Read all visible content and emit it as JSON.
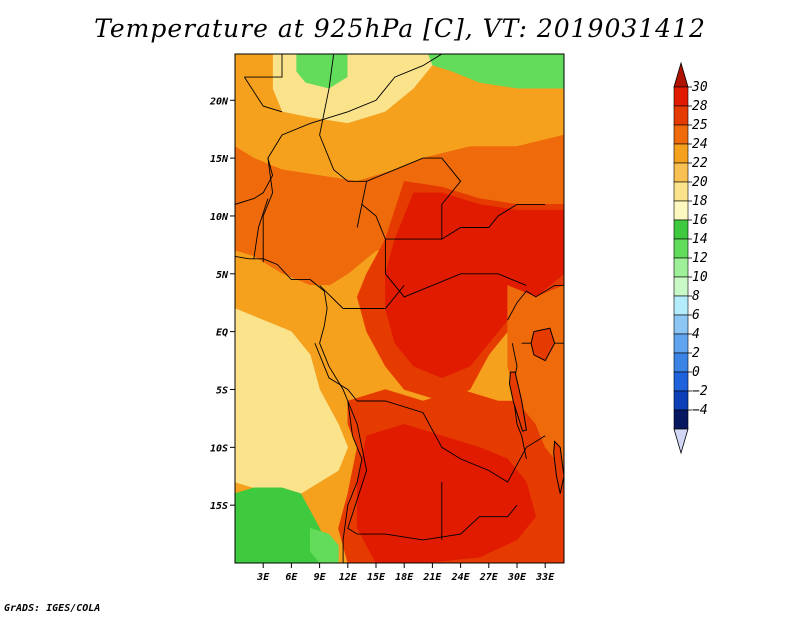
{
  "chart_data": {
    "type": "heatmap",
    "title": "Temperature at 925hPa [C], VT: 2019031412",
    "xlabel": "",
    "ylabel": "",
    "x_range": [
      0,
      35
    ],
    "y_range": [
      -20,
      24
    ],
    "x_ticks": [
      {
        "value": 3,
        "label": "3E"
      },
      {
        "value": 6,
        "label": "6E"
      },
      {
        "value": 9,
        "label": "9E"
      },
      {
        "value": 12,
        "label": "12E"
      },
      {
        "value": 15,
        "label": "15E"
      },
      {
        "value": 18,
        "label": "18E"
      },
      {
        "value": 21,
        "label": "21E"
      },
      {
        "value": 24,
        "label": "24E"
      },
      {
        "value": 27,
        "label": "27E"
      },
      {
        "value": 30,
        "label": "30E"
      },
      {
        "value": 33,
        "label": "33E"
      }
    ],
    "y_ticks": [
      {
        "value": 20,
        "label": "20N"
      },
      {
        "value": 15,
        "label": "15N"
      },
      {
        "value": 10,
        "label": "10N"
      },
      {
        "value": 5,
        "label": "5N"
      },
      {
        "value": 0,
        "label": "EQ"
      },
      {
        "value": -5,
        "label": "5S"
      },
      {
        "value": -10,
        "label": "10S"
      },
      {
        "value": -15,
        "label": "15S"
      }
    ],
    "colorbar": {
      "levels": [
        {
          "label": "30",
          "color": "#e11b00"
        },
        {
          "label": "28",
          "color": "#e63b00"
        },
        {
          "label": "25",
          "color": "#ee6a0a"
        },
        {
          "label": "24",
          "color": "#f5a11e"
        },
        {
          "label": "22",
          "color": "#f7c050"
        },
        {
          "label": "20",
          "color": "#fbe38c"
        },
        {
          "label": "18",
          "color": "#fdf8c0"
        },
        {
          "label": "16",
          "color": "#3ec93e"
        },
        {
          "label": "14",
          "color": "#62dc5a"
        },
        {
          "label": "12",
          "color": "#9df098"
        },
        {
          "label": "10",
          "color": "#c9f9c6"
        },
        {
          "label": "8",
          "color": "#b3ecfb"
        },
        {
          "label": "6",
          "color": "#8cc6f4"
        },
        {
          "label": "4",
          "color": "#60a3ee"
        },
        {
          "label": "2",
          "color": "#3b84e6"
        },
        {
          "label": "0",
          "color": "#1e62dc"
        },
        {
          "label": "−2",
          "color": "#0c3fb8"
        },
        {
          "label": "−4",
          "color": "#08208a"
        }
      ],
      "top_overflow_color": "#b01200",
      "bottom_overflow_color": "#d2d7f5",
      "bottom_band_color": "#081860"
    },
    "regions": [
      {
        "name": "north-green-band",
        "temp_class": "14-16",
        "color": "#62dc5a",
        "poly": [
          [
            6.5,
            24
          ],
          [
            12,
            24
          ],
          [
            12,
            22
          ],
          [
            10,
            21
          ],
          [
            7.5,
            21.5
          ],
          [
            6.5,
            22.5
          ]
        ]
      },
      {
        "name": "northeast-green",
        "temp_class": "14-16",
        "color": "#62dc5a",
        "poly": [
          [
            20.5,
            24
          ],
          [
            35,
            24
          ],
          [
            35,
            21
          ],
          [
            30,
            21
          ],
          [
            26,
            21.5
          ],
          [
            23,
            22.5
          ],
          [
            21,
            23
          ]
        ]
      },
      {
        "name": "sahara-yellow",
        "temp_class": "20-22",
        "color": "#fbe38c",
        "poly": [
          [
            4,
            24
          ],
          [
            6.5,
            24
          ],
          [
            6.5,
            22.5
          ],
          [
            7.5,
            21.5
          ],
          [
            10,
            21
          ],
          [
            12,
            22
          ],
          [
            12,
            24
          ],
          [
            20.5,
            24
          ],
          [
            21,
            23
          ],
          [
            19,
            21
          ],
          [
            16,
            19
          ],
          [
            12,
            18
          ],
          [
            8,
            18.5
          ],
          [
            5,
            19
          ],
          [
            4,
            21
          ]
        ]
      },
      {
        "name": "sahel-orange",
        "temp_class": "24-25",
        "color": "#f5a11e",
        "poly": [
          [
            0,
            24
          ],
          [
            4,
            24
          ],
          [
            4,
            21
          ],
          [
            5,
            19
          ],
          [
            8,
            18.5
          ],
          [
            12,
            18
          ],
          [
            16,
            19
          ],
          [
            19,
            21
          ],
          [
            21,
            23
          ],
          [
            23,
            22.5
          ],
          [
            26,
            21.5
          ],
          [
            30,
            21
          ],
          [
            35,
            21
          ],
          [
            35,
            17
          ],
          [
            30,
            16
          ],
          [
            25,
            16
          ],
          [
            20,
            15
          ],
          [
            17,
            14
          ],
          [
            13,
            13
          ],
          [
            9,
            13.5
          ],
          [
            5,
            14
          ],
          [
            2,
            15
          ],
          [
            0,
            16
          ]
        ]
      },
      {
        "name": "west-africa-hot",
        "temp_class": "25-28",
        "color": "#ee6a0a",
        "poly": [
          [
            0,
            16
          ],
          [
            2,
            15
          ],
          [
            5,
            14
          ],
          [
            9,
            13.5
          ],
          [
            13,
            13
          ],
          [
            17,
            14
          ],
          [
            20,
            15
          ],
          [
            25,
            16
          ],
          [
            30,
            16
          ],
          [
            35,
            17
          ],
          [
            35,
            10
          ],
          [
            30,
            9
          ],
          [
            25,
            9
          ],
          [
            20,
            8
          ],
          [
            15,
            7
          ],
          [
            12,
            5
          ],
          [
            10,
            4
          ],
          [
            8,
            4
          ],
          [
            5,
            5
          ],
          [
            2,
            6.5
          ],
          [
            0,
            7
          ]
        ]
      },
      {
        "name": "central-very-hot",
        "temp_class": "28-30",
        "color": "#e63b00",
        "poly": [
          [
            18,
            13
          ],
          [
            22,
            12.5
          ],
          [
            26,
            11.5
          ],
          [
            30,
            11
          ],
          [
            35,
            11
          ],
          [
            35,
            4
          ],
          [
            32,
            2
          ],
          [
            29,
            0
          ],
          [
            27,
            -2
          ],
          [
            25,
            -5
          ],
          [
            22,
            -6
          ],
          [
            18,
            -5
          ],
          [
            16,
            -3
          ],
          [
            14,
            0
          ],
          [
            13,
            3
          ],
          [
            14,
            5
          ],
          [
            16,
            8
          ]
        ]
      },
      {
        "name": "central-hottest",
        "temp_class": "30+",
        "color": "#e11b00",
        "poly": [
          [
            19,
            12
          ],
          [
            22,
            12
          ],
          [
            26,
            11
          ],
          [
            30,
            10.5
          ],
          [
            35,
            10.5
          ],
          [
            35,
            5
          ],
          [
            32,
            3
          ],
          [
            29,
            1
          ],
          [
            27,
            -1
          ],
          [
            25,
            -3
          ],
          [
            22,
            -4
          ],
          [
            19,
            -3
          ],
          [
            17,
            -1
          ],
          [
            16,
            2
          ],
          [
            16,
            5
          ],
          [
            17,
            8
          ]
        ]
      },
      {
        "name": "atlantic-coast-warm",
        "temp_class": "24-25",
        "color": "#f5a11e",
        "poly": [
          [
            0,
            7
          ],
          [
            2,
            6.5
          ],
          [
            5,
            5
          ],
          [
            8,
            4
          ],
          [
            10,
            4
          ],
          [
            10,
            0
          ],
          [
            9,
            -3
          ],
          [
            10,
            -6
          ],
          [
            12,
            -8
          ],
          [
            13,
            -10
          ],
          [
            12,
            -12
          ],
          [
            10,
            -12.5
          ],
          [
            7,
            -13
          ],
          [
            4,
            -13
          ],
          [
            2,
            -12.5
          ],
          [
            0,
            -12
          ]
        ]
      },
      {
        "name": "atlantic-pale",
        "temp_class": "20-22",
        "color": "#fbe38c",
        "poly": [
          [
            0,
            2
          ],
          [
            3,
            1
          ],
          [
            6,
            0
          ],
          [
            8,
            -2
          ],
          [
            9,
            -5
          ],
          [
            11,
            -8
          ],
          [
            12,
            -10
          ],
          [
            11,
            -12
          ],
          [
            9,
            -13
          ],
          [
            7,
            -14
          ],
          [
            4,
            -14
          ],
          [
            2,
            -13.5
          ],
          [
            0,
            -13
          ]
        ]
      },
      {
        "name": "south-atlantic-green",
        "temp_class": "16-18",
        "color": "#3ec93e",
        "poly": [
          [
            0,
            -14
          ],
          [
            2,
            -13.5
          ],
          [
            5,
            -13.5
          ],
          [
            7,
            -14
          ],
          [
            8,
            -15.5
          ],
          [
            9,
            -17
          ],
          [
            10,
            -19
          ],
          [
            11,
            -20
          ],
          [
            0,
            -20
          ]
        ]
      },
      {
        "name": "south-light-green",
        "temp_class": "14-16",
        "color": "#62dc5a",
        "poly": [
          [
            8,
            -17
          ],
          [
            10,
            -17.5
          ],
          [
            11,
            -18.5
          ],
          [
            11,
            -20
          ],
          [
            9,
            -20
          ],
          [
            8,
            -19
          ]
        ]
      },
      {
        "name": "angola-hot",
        "temp_class": "28-30",
        "color": "#e63b00",
        "poly": [
          [
            12,
            -6
          ],
          [
            16,
            -5
          ],
          [
            20,
            -6
          ],
          [
            24,
            -5
          ],
          [
            28,
            -6
          ],
          [
            30,
            -6
          ],
          [
            32,
            -8
          ],
          [
            33,
            -10
          ],
          [
            35,
            -12
          ],
          [
            35,
            -20
          ],
          [
            12,
            -20
          ],
          [
            11,
            -17
          ],
          [
            12,
            -14
          ],
          [
            13,
            -10
          ],
          [
            12,
            -8
          ]
        ]
      },
      {
        "name": "zambia-hottest",
        "temp_class": "30+",
        "color": "#e11b00",
        "poly": [
          [
            14,
            -9
          ],
          [
            18,
            -8
          ],
          [
            22,
            -9
          ],
          [
            26,
            -10
          ],
          [
            29,
            -11
          ],
          [
            31,
            -13
          ],
          [
            32,
            -16
          ],
          [
            30,
            -18
          ],
          [
            26,
            -19.5
          ],
          [
            20,
            -20
          ],
          [
            15,
            -20
          ],
          [
            13,
            -17
          ],
          [
            13,
            -13
          ]
        ]
      },
      {
        "name": "east-africa-hot",
        "temp_class": "25-28",
        "color": "#ee6a0a",
        "poly": [
          [
            29,
            4
          ],
          [
            32,
            3
          ],
          [
            35,
            4
          ],
          [
            35,
            -12
          ],
          [
            33,
            -10
          ],
          [
            32,
            -8
          ],
          [
            30,
            -6
          ],
          [
            29,
            -3
          ],
          [
            29,
            0
          ]
        ]
      }
    ]
  },
  "credit": "GrADS: IGES/COLA"
}
